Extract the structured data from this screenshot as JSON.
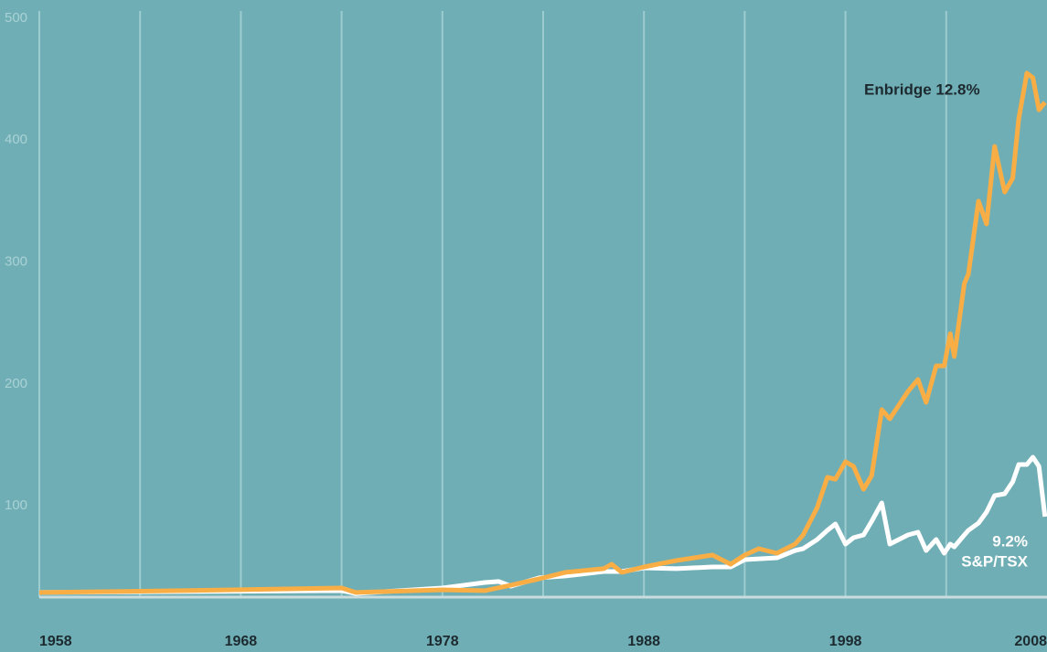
{
  "chart_data": {
    "type": "line",
    "xlim": [
      1958,
      2008
    ],
    "xticks": [
      1958,
      1968,
      1978,
      1988,
      1998,
      2008
    ],
    "xgrid_ticks": [
      1963,
      1968,
      1973,
      1978,
      1983,
      1988,
      1993,
      1998,
      2003
    ],
    "ylim": [
      25,
      500
    ],
    "yticks": [
      100,
      200,
      300,
      400,
      500
    ],
    "grid": true,
    "series": [
      {
        "name": "Enbridge",
        "color": "#f9ae45",
        "x": [
          1958.0,
          1965.1,
          1973.0,
          1973.7,
          1978.0,
          1980.1,
          1981.4,
          1982.8,
          1984.1,
          1986.0,
          1986.4,
          1986.9,
          1988.0,
          1989.6,
          1991.4,
          1992.3,
          1993.0,
          1993.7,
          1994.6,
          1995.5,
          1995.9,
          1996.6,
          1997.1,
          1997.5,
          1998.0,
          1998.4,
          1998.9,
          1999.3,
          1999.8,
          2000.2,
          2001.1,
          2001.6,
          2002.0,
          2002.5,
          2002.9,
          2003.2,
          2003.4,
          2003.9,
          2004.1,
          2004.6,
          2005.0,
          2005.4,
          2005.9,
          2006.3,
          2006.6,
          2007.0,
          2007.3,
          2007.6,
          2007.9
        ],
        "values": [
          28.8,
          30.3,
          32.5,
          28.8,
          31.0,
          30.3,
          34.8,
          40.0,
          45.3,
          48.3,
          52.0,
          45.3,
          49.8,
          55.0,
          59.5,
          52.0,
          59.5,
          64.8,
          61.0,
          68.5,
          76.0,
          98.5,
          123.3,
          121.8,
          136.1,
          132.3,
          113.5,
          124.8,
          178.8,
          171.3,
          193.8,
          203.6,
          184.8,
          214.8,
          214.8,
          241.1,
          222.4,
          282.4,
          289.9,
          349.9,
          331.2,
          394.9,
          357.4,
          368.7,
          417.5,
          455.0,
          451.2,
          424.9,
          431.0
        ]
      },
      {
        "name": "S&P/TSX",
        "color": "#ffffff",
        "x": [
          1958.0,
          1973.0,
          1973.7,
          1978.0,
          1980.1,
          1980.8,
          1981.4,
          1982.8,
          1984.1,
          1986.0,
          1986.9,
          1988.0,
          1989.6,
          1991.4,
          1992.3,
          1993.0,
          1994.6,
          1995.5,
          1995.9,
          1996.6,
          1997.1,
          1997.5,
          1998.0,
          1998.4,
          1998.9,
          1999.3,
          1999.8,
          2000.2,
          2001.1,
          2001.6,
          2002.0,
          2002.5,
          2002.9,
          2003.2,
          2003.4,
          2003.9,
          2004.1,
          2004.6,
          2005.0,
          2005.4,
          2005.9,
          2006.3,
          2006.6,
          2007.0,
          2007.3,
          2007.6,
          2007.9
        ],
        "values": [
          28.8,
          30.3,
          28.0,
          32.5,
          37.0,
          37.8,
          34.0,
          40.8,
          42.3,
          46.0,
          46.0,
          49.0,
          48.3,
          49.8,
          49.8,
          55.8,
          57.3,
          63.3,
          64.8,
          72.3,
          79.8,
          85.0,
          68.5,
          73.8,
          76.0,
          87.3,
          102.3,
          68.5,
          76.0,
          78.3,
          63.3,
          72.3,
          61.0,
          68.5,
          66.3,
          76.0,
          79.8,
          85.8,
          94.8,
          108.3,
          109.8,
          119.6,
          133.8,
          133.8,
          139.8,
          132.3,
          91.0
        ]
      }
    ],
    "annotations": [
      {
        "text": "Enbridge 12.8%"
      },
      {
        "text": "9.2%"
      },
      {
        "text": "S&P/TSX"
      }
    ]
  }
}
